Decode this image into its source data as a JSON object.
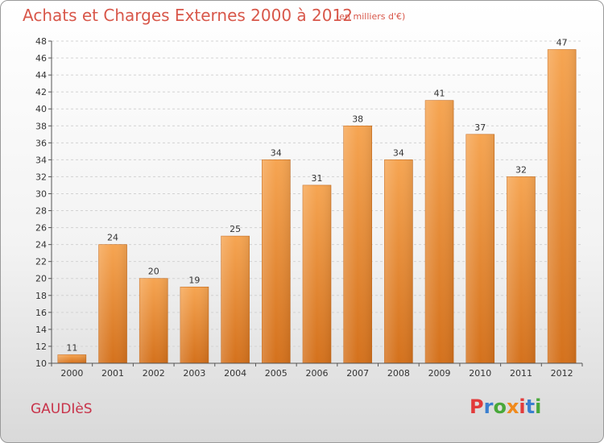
{
  "header": {
    "title": "Achats et Charges Externes 2000 à 2012",
    "subtitle": "(en milliers d'€)"
  },
  "footer": {
    "commune": "GAUDIèS",
    "logo_text": "Proxiti"
  },
  "colors": {
    "title": "#d8574a",
    "commune": "#c8334a",
    "bar_light": "#f6a552",
    "bar_dark": "#d4711c",
    "logo": [
      "#e23b3b",
      "#3a7fd0",
      "#48a83a",
      "#f08a1c",
      "#e23b3b",
      "#3a7fd0",
      "#48a83a"
    ]
  },
  "chart_data": {
    "type": "bar",
    "categories": [
      "2000",
      "2001",
      "2002",
      "2003",
      "2004",
      "2005",
      "2006",
      "2007",
      "2008",
      "2009",
      "2010",
      "2011",
      "2012"
    ],
    "values": [
      11,
      24,
      20,
      19,
      25,
      34,
      31,
      38,
      34,
      41,
      37,
      32,
      47
    ],
    "ylim": [
      10,
      48
    ],
    "yticks": [
      10,
      12,
      14,
      16,
      18,
      20,
      22,
      24,
      26,
      28,
      30,
      32,
      34,
      36,
      38,
      40,
      42,
      44,
      46,
      48
    ],
    "grid": true,
    "data_labels": true
  }
}
